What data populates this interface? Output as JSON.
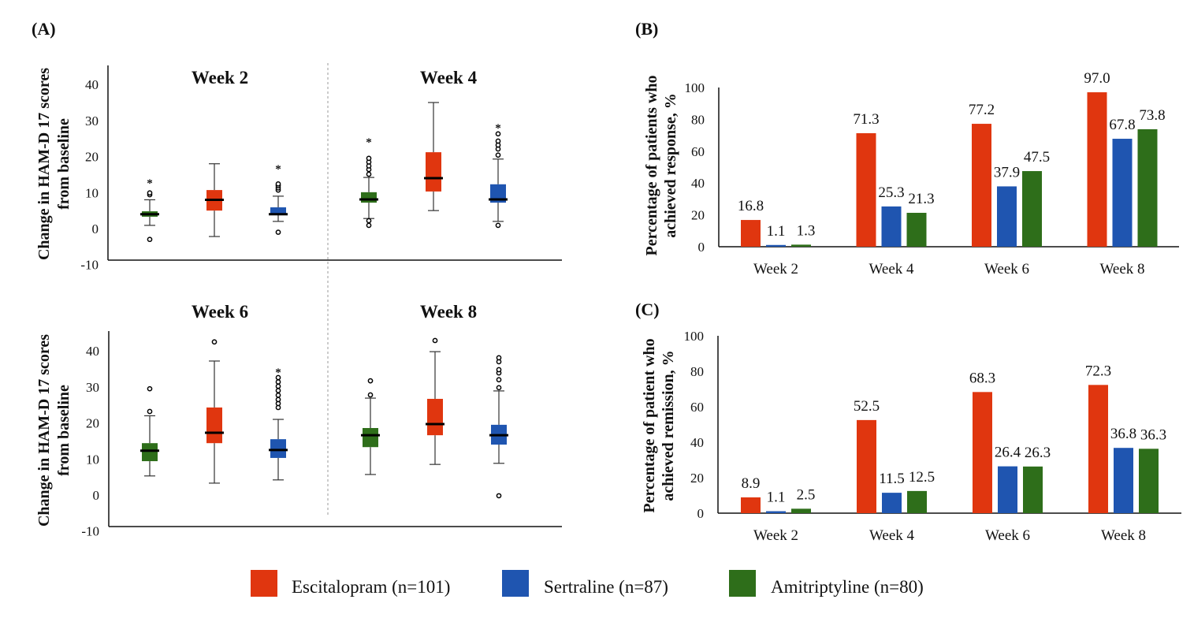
{
  "legend": [
    {
      "name": "Escitalopram (n=101)",
      "color": "#e0360f"
    },
    {
      "name": "Sertraline (n=87)",
      "color": "#1f55b0"
    },
    {
      "name": "Amitriptyline (n=80)",
      "color": "#2e6e1a"
    }
  ],
  "chart_data": [
    {
      "id": "A",
      "panel_label": "(A)",
      "type": "box",
      "ylabel_line1": "Change in HAM-D 17 scores",
      "ylabel_line2": "from baseline",
      "yticks": [
        -10,
        0,
        10,
        20,
        30,
        40
      ],
      "ylim": [
        -10,
        45
      ],
      "group_order": [
        "Amitriptyline (n=80)",
        "Escitalopram (n=101)",
        "Sertraline (n=87)"
      ],
      "subplots": [
        {
          "title": "Week 2",
          "boxes": [
            {
              "series": "Amitriptyline (n=80)",
              "whisker_low": 0.9,
              "q1": 3.3,
              "median": 4.0,
              "q3": 4.8,
              "whisker_high": 8.0,
              "outliers": [
                -3.0,
                9.4,
                9.9
              ],
              "extremes": [
                12.9
              ]
            },
            {
              "series": "Escitalopram (n=101)",
              "whisker_low": -2.2,
              "q1": 5.0,
              "median": 8.0,
              "q3": 10.7,
              "whisker_high": 18.0,
              "outliers": [],
              "extremes": []
            },
            {
              "series": "Sertraline (n=87)",
              "whisker_low": 2.0,
              "q1": 4.0,
              "median": 4.0,
              "q3": 5.9,
              "whisker_high": 9.0,
              "outliers": [
                -1.0,
                10.7,
                11.3,
                11.9,
                12.4
              ],
              "extremes": [
                16.9
              ]
            }
          ]
        },
        {
          "title": "Week 4",
          "boxes": [
            {
              "series": "Amitriptyline (n=80)",
              "whisker_low": 2.8,
              "q1": 7.2,
              "median": 8.1,
              "q3": 10.1,
              "whisker_high": 14.2,
              "outliers": [
                0.9,
                2.2,
                15.1,
                16.4,
                17.4,
                18.5,
                19.5
              ],
              "extremes": [
                24.3
              ]
            },
            {
              "series": "Escitalopram (n=101)",
              "whisker_low": 5.0,
              "q1": 10.3,
              "median": 14.0,
              "q3": 21.2,
              "whisker_high": 35.0,
              "outliers": [],
              "extremes": []
            },
            {
              "series": "Sertraline (n=87)",
              "whisker_low": 2.0,
              "q1": 7.2,
              "median": 8.1,
              "q3": 12.3,
              "whisker_high": 19.3,
              "outliers": [
                0.9,
                20.4,
                22.1,
                23.2,
                24.3,
                26.3
              ],
              "extremes": [
                28.2
              ]
            }
          ]
        },
        {
          "title": "Week 6",
          "boxes": [
            {
              "series": "Amitriptyline (n=80)",
              "whisker_low": 5.3,
              "q1": 9.4,
              "median": 12.3,
              "q3": 14.4,
              "whisker_high": 22.0,
              "outliers": [
                23.2,
                29.5
              ],
              "extremes": []
            },
            {
              "series": "Escitalopram (n=101)",
              "whisker_low": 3.3,
              "q1": 14.4,
              "median": 17.3,
              "q3": 24.3,
              "whisker_high": 37.2,
              "outliers": [
                42.5
              ],
              "extremes": []
            },
            {
              "series": "Sertraline (n=87)",
              "whisker_low": 4.2,
              "q1": 10.3,
              "median": 12.5,
              "q3": 15.5,
              "whisker_high": 21.0,
              "outliers": [
                24.3,
                25.4,
                26.5,
                27.7,
                29.0,
                30.2,
                31.4,
                32.6
              ],
              "extremes": [
                34.4
              ]
            }
          ]
        },
        {
          "title": "Week 8",
          "boxes": [
            {
              "series": "Amitriptyline (n=80)",
              "whisker_low": 5.7,
              "q1": 13.3,
              "median": 16.6,
              "q3": 18.6,
              "whisker_high": 26.9,
              "outliers": [
                27.8,
                31.7
              ],
              "extremes": []
            },
            {
              "series": "Escitalopram (n=101)",
              "whisker_low": 8.5,
              "q1": 16.6,
              "median": 19.7,
              "q3": 26.7,
              "whisker_high": 39.8,
              "outliers": [
                42.9
              ],
              "extremes": []
            },
            {
              "series": "Sertraline (n=87)",
              "whisker_low": 8.8,
              "q1": 14.0,
              "median": 16.6,
              "q3": 19.5,
              "whisker_high": 28.9,
              "outliers": [
                -0.2,
                29.8,
                32.0,
                33.9,
                34.8,
                37.0,
                38.1
              ],
              "extremes": []
            }
          ]
        }
      ]
    },
    {
      "id": "B",
      "panel_label": "(B)",
      "type": "bar",
      "ylabel_line1": "Percentage of patients who",
      "ylabel_line2": "achieved response, %",
      "categories": [
        "Week 2",
        "Week 4",
        "Week 6",
        "Week 8"
      ],
      "yticks": [
        0,
        20,
        40,
        60,
        80,
        100
      ],
      "ylim": [
        0,
        100
      ],
      "series": [
        {
          "name": "Escitalopram (n=101)",
          "values": [
            16.8,
            71.3,
            77.2,
            97.0
          ],
          "labels": [
            "16.8",
            "71.3",
            "77.2",
            "97.0"
          ]
        },
        {
          "name": "Sertraline (n=87)",
          "values": [
            1.1,
            25.3,
            37.9,
            67.8
          ],
          "labels": [
            "1.1",
            "25.3",
            "37.9",
            "67.8"
          ]
        },
        {
          "name": "Amitriptyline (n=80)",
          "values": [
            1.3,
            21.3,
            47.5,
            73.8
          ],
          "labels": [
            "1.3",
            "21.3",
            "47.5",
            "73.8"
          ]
        }
      ]
    },
    {
      "id": "C",
      "panel_label": "(C)",
      "type": "bar",
      "ylabel_line1": "Percentage of patient who",
      "ylabel_line2": "achieved remission, %",
      "categories": [
        "Week 2",
        "Week 4",
        "Week 6",
        "Week 8"
      ],
      "yticks": [
        0,
        20,
        40,
        60,
        80,
        100
      ],
      "ylim": [
        0,
        100
      ],
      "series": [
        {
          "name": "Escitalopram (n=101)",
          "values": [
            8.9,
            52.5,
            68.3,
            72.3
          ],
          "labels": [
            "8.9",
            "52.5",
            "68.3",
            "72.3"
          ]
        },
        {
          "name": "Sertraline (n=87)",
          "values": [
            1.1,
            11.5,
            26.4,
            36.8
          ],
          "labels": [
            "1.1",
            "11.5",
            "26.4",
            "36.8"
          ]
        },
        {
          "name": "Amitriptyline (n=80)",
          "values": [
            2.5,
            12.5,
            26.3,
            36.3
          ],
          "labels": [
            "2.5",
            "12.5",
            "26.3",
            "36.3"
          ]
        }
      ]
    }
  ]
}
